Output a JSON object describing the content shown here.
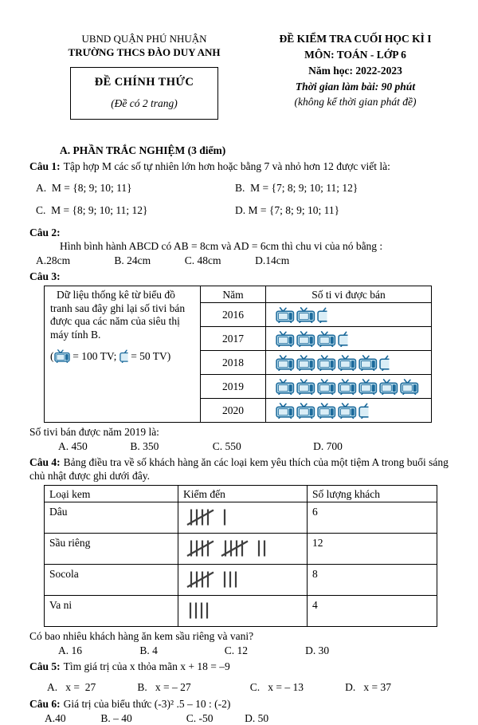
{
  "colors": {
    "tv_dark": "#1c6a9b",
    "tv_body": "#b7dbeb",
    "tv_screen": "#d9edf6",
    "tally": "#3f3f3f"
  },
  "header": {
    "left_line1": "UBND QUẬN PHÚ NHUẬN",
    "left_line2": "TRƯỜNG THCS ĐÀO DUY ANH",
    "box_title": "ĐỀ CHÍNH THỨC",
    "box_subtitle": "(Đề có 2 trang)",
    "right_line1": "ĐỀ KIỂM TRA CUỐI HỌC KÌ I",
    "right_line2": "MÔN: TOÁN - LỚP 6",
    "right_line3": "Năm học: 2022-2023",
    "right_line4": "Thời gian làm bài: 90 phút",
    "right_line5": "(không kể thời gian phát đề)"
  },
  "section_a_title": "A.  PHẦN TRẮC NGHIỆM (3 điểm)",
  "q1": {
    "label": "Câu 1:",
    "text": "Tập hợp M các số tự nhiên lớn hơn hoặc bằng 7 và nhỏ hơn 12 được viết là:",
    "opts": [
      "A.  M = {8; 9; 10; 11}",
      "B.  M = {7; 8; 9; 10; 11; 12}",
      "C.  M = {8; 9; 10; 11; 12}",
      "D. M = {7; 8; 9; 10; 11}"
    ]
  },
  "q2": {
    "label": "Câu 2:",
    "text": "Hình bình hành ABCD có AB = 8cm và AD = 6cm thì chu vi của nó bằng :",
    "opts": [
      "A.28cm",
      "B. 24cm",
      "C. 48cm",
      "D.14cm"
    ]
  },
  "q3": {
    "label": "Câu 3:",
    "desc": "Dữ liệu thống kê từ biểu đồ tranh sau đây ghi lại số tivi  bán được qua các năm của siêu thị máy tính B.",
    "legend_open": "(",
    "legend_full_eq": " = 100 TV; ",
    "legend_half_eq": " = 50 TV)",
    "col_year": "Năm",
    "col_sold": "Số ti vi được bán",
    "rows": [
      {
        "year": "2016",
        "full": 2,
        "half": 1
      },
      {
        "year": "2017",
        "full": 3,
        "half": 1
      },
      {
        "year": "2018",
        "full": 5,
        "half": 1
      },
      {
        "year": "2019",
        "full": 7,
        "half": 0
      },
      {
        "year": "2020",
        "full": 4,
        "half": 1
      }
    ],
    "question": "Số tivi bán được năm 2019 là:",
    "opts": [
      "A. 450",
      "B. 350",
      "C. 550",
      "D. 700"
    ]
  },
  "q4": {
    "label": "Câu 4:",
    "text": "Bảng điều tra về số khách hàng ăn các loại kem yêu thích của một tiệm A trong buổi sáng chủ nhật được ghi dưới đây.",
    "col1": "Loại kem",
    "col2": "Kiểm đến",
    "col3": "Số lượng khách",
    "rows": [
      {
        "flavor": "Dâu",
        "tally": [
          5,
          1
        ],
        "count": "6"
      },
      {
        "flavor": "Sầu riêng",
        "tally": [
          5,
          5,
          2
        ],
        "count": "12"
      },
      {
        "flavor": "Socola",
        "tally": [
          5,
          3
        ],
        "count": "8"
      },
      {
        "flavor": "Va ni",
        "tally": [
          4
        ],
        "count": "4"
      }
    ],
    "question": "Có bao nhiêu khách hàng ăn kem sầu  riêng và vani?",
    "opts": [
      "A. 16",
      "B. 4",
      "C. 12",
      "D. 30"
    ]
  },
  "q5": {
    "label": "Câu 5:",
    "text": "Tìm giá trị của x thỏa mãn x + 18 = –9",
    "opts": [
      "A.   x =  27",
      "B.   x = – 27",
      "C.   x = – 13",
      "D.   x = 37"
    ]
  },
  "q6": {
    "label": "Câu 6:",
    "text": "Giá trị của biểu thức  (-3)² .5 – 10 : (-2)",
    "opts": [
      "A.40",
      "B. – 40",
      "C. -50",
      "D. 50"
    ]
  }
}
